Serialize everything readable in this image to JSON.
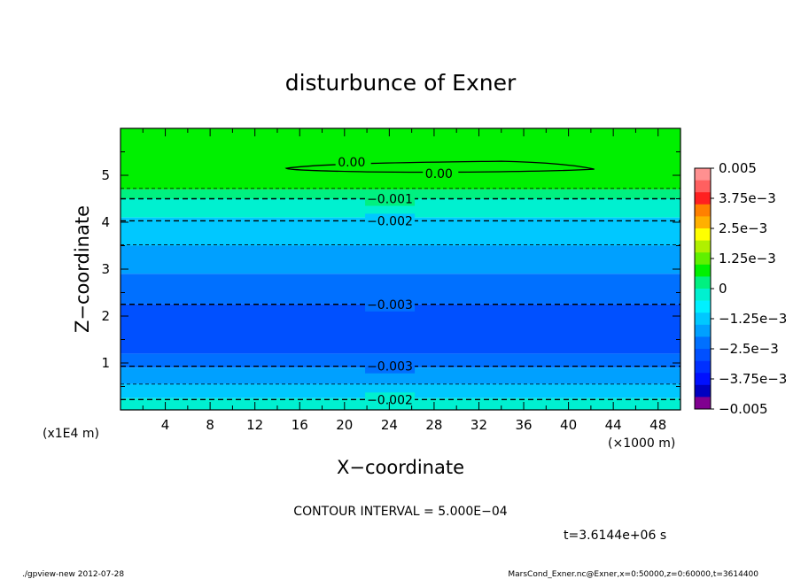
{
  "chart_data": {
    "type": "heatmap",
    "title": "disturbunce of Exner",
    "xlabel": "X−coordinate",
    "ylabel": "Z−coordinate",
    "x_unit": "(×1000 m)",
    "y_unit": "(x1E4 m)",
    "xlim": [
      0,
      50
    ],
    "ylim": [
      0,
      6
    ],
    "x_ticks": [
      "4",
      "8",
      "12",
      "16",
      "20",
      "24",
      "28",
      "32",
      "36",
      "40",
      "44",
      "48"
    ],
    "y_ticks": [
      "1",
      "2",
      "3",
      "4",
      "5"
    ],
    "colorbar_ticks": [
      "0.005",
      "3.75e−3",
      "2.5e−3",
      "1.25e−3",
      "0",
      "−1.25e−3",
      "−2.5e−3",
      "−3.75e−3",
      "−0.005"
    ],
    "colorbar_colors": [
      "#ff9090",
      "#ff6060",
      "#ff2020",
      "#ff8000",
      "#ffb000",
      "#ffff00",
      "#b0f000",
      "#60f000",
      "#00f000",
      "#00f080",
      "#00f0d0",
      "#00f0ff",
      "#00c8ff",
      "#00a0ff",
      "#0070ff",
      "#0050ff",
      "#0030ff",
      "#0010ff",
      "#0000c0",
      "#800090"
    ],
    "bands": [
      {
        "z0": 4.7,
        "z1": 6.0,
        "color": "#00f000"
      },
      {
        "z0": 4.5,
        "z1": 4.7,
        "color": "#00f080"
      },
      {
        "z0": 4.1,
        "z1": 4.5,
        "color": "#00f0d0"
      },
      {
        "z0": 3.5,
        "z1": 4.1,
        "color": "#00c8ff"
      },
      {
        "z0": 2.9,
        "z1": 3.5,
        "color": "#00a0ff"
      },
      {
        "z0": 2.25,
        "z1": 2.9,
        "color": "#0070ff"
      },
      {
        "z0": 1.2,
        "z1": 2.25,
        "color": "#0050ff"
      },
      {
        "z0": 0.9,
        "z1": 1.2,
        "color": "#0070ff"
      },
      {
        "z0": 0.55,
        "z1": 0.9,
        "color": "#00a0ff"
      },
      {
        "z0": 0.25,
        "z1": 0.55,
        "color": "#00c8ff"
      },
      {
        "z0": 0.0,
        "z1": 0.25,
        "color": "#00f0d0"
      }
    ],
    "contours": [
      {
        "z": 4.72,
        "style": "thin"
      },
      {
        "z": 4.5,
        "style": "dash",
        "label": "−0.001",
        "lx": 22
      },
      {
        "z": 4.03,
        "style": "dash",
        "label": "−0.002",
        "lx": 22
      },
      {
        "z": 3.52,
        "style": "thin"
      },
      {
        "z": 2.25,
        "style": "dash",
        "label": "−0.003",
        "lx": 22
      },
      {
        "z": 0.93,
        "style": "dash",
        "label": "−0.003",
        "lx": 22
      },
      {
        "z": 0.55,
        "style": "thin"
      },
      {
        "z": 0.22,
        "style": "dash",
        "label": "−0.002",
        "lx": 22
      }
    ],
    "zero_contour_labels": [
      "0.00",
      "0.00"
    ],
    "annotations": {
      "contour_interval": "CONTOUR INTERVAL = 5.000E−04",
      "time": "t=3.6144e+06 s",
      "footer_left": "./gpview-new  2012-07-28",
      "footer_right": "MarsCond_Exner.nc@Exner,x=0:50000,z=0:60000,t=3614400"
    }
  }
}
